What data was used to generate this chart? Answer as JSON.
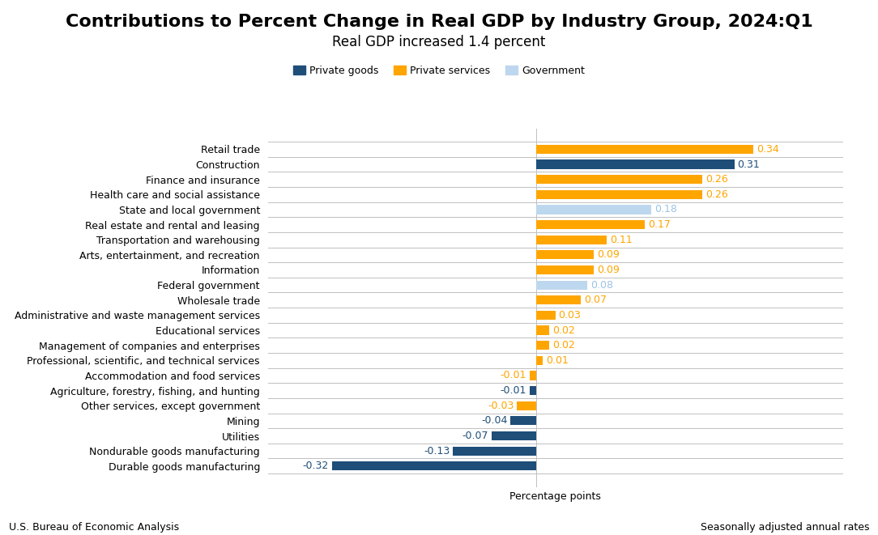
{
  "title": "Contributions to Percent Change in Real GDP by Industry Group, 2024:Q1",
  "subtitle": "Real GDP increased 1.4 percent",
  "xlabel": "Percentage points",
  "footer_left": "U.S. Bureau of Economic Analysis",
  "footer_right": "Seasonally adjusted annual rates",
  "categories": [
    "Retail trade",
    "Construction",
    "Finance and insurance",
    "Health care and social assistance",
    "State and local government",
    "Real estate and rental and leasing",
    "Transportation and warehousing",
    "Arts, entertainment, and recreation",
    "Information",
    "Federal government",
    "Wholesale trade",
    "Administrative and waste management services",
    "Educational services",
    "Management of companies and enterprises",
    "Professional, scientific, and technical services",
    "Accommodation and food services",
    "Agriculture, forestry, fishing, and hunting",
    "Other services, except government",
    "Mining",
    "Utilities",
    "Nondurable goods manufacturing",
    "Durable goods manufacturing"
  ],
  "values": [
    0.34,
    0.31,
    0.26,
    0.26,
    0.18,
    0.17,
    0.11,
    0.09,
    0.09,
    0.08,
    0.07,
    0.03,
    0.02,
    0.02,
    0.01,
    -0.01,
    -0.01,
    -0.03,
    -0.04,
    -0.07,
    -0.13,
    -0.32
  ],
  "group": [
    "services",
    "goods",
    "services",
    "services",
    "government",
    "services",
    "services",
    "services",
    "services",
    "government",
    "services",
    "services",
    "services",
    "services",
    "services",
    "services",
    "goods",
    "services",
    "goods",
    "goods",
    "goods",
    "goods"
  ],
  "color_goods": "#1F4E79",
  "color_services": "#FFA500",
  "color_government": "#BDD7EE",
  "color_label_goods": "#1F4E79",
  "color_label_services": "#FFA500",
  "color_label_government": "#9DC3E6",
  "legend_labels": [
    "Private goods",
    "Private services",
    "Government"
  ],
  "bar_height": 0.6,
  "xlim": [
    -0.42,
    0.48
  ],
  "background_color": "#FFFFFF",
  "gridline_color": "#C0C0C0",
  "title_fontsize": 16,
  "subtitle_fontsize": 12,
  "label_fontsize": 9,
  "tick_fontsize": 9,
  "footer_fontsize": 9
}
